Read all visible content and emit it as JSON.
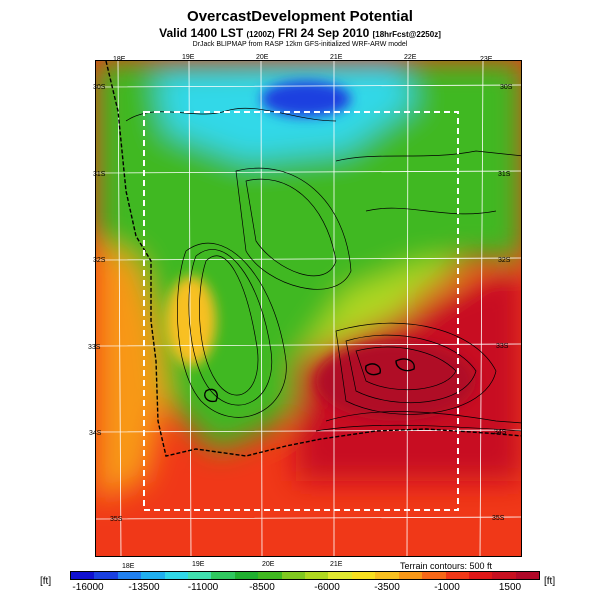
{
  "title": "OvercastDevelopment Potential",
  "subtitle_main": "Valid 1400 LST",
  "subtitle_z": "(1200Z)",
  "subtitle_date": "FRI 24 Sep 2010",
  "subtitle_fcst": "[18hrFcst@2250z]",
  "credit": "DrJack BLIPMAP from RASP 12km GFS-initialized WRF-ARW model",
  "lon_labels_top": [
    "18E",
    "19E",
    "20E",
    "21E",
    "22E",
    "23E"
  ],
  "lon_labels_bottom": [
    "18E",
    "19E",
    "20E",
    "21E"
  ],
  "lat_labels_left": [
    "30S",
    "31S",
    "32S",
    "33S",
    "34S",
    "35S"
  ],
  "lat_labels_right": [
    "30S",
    "31S",
    "32S",
    "33S",
    "34S",
    "35S"
  ],
  "terrain_note": "Terrain contours: 500 ft",
  "unit": "[ft]",
  "colorbar": {
    "labels": [
      "-16000",
      "-13500",
      "-11000",
      "-8500",
      "-6000",
      "-3500",
      "-1000",
      "1500"
    ],
    "colors": [
      "#1010d0",
      "#1a40e0",
      "#2080f0",
      "#20b0f0",
      "#30d8e8",
      "#40e0b0",
      "#30c860",
      "#20b030",
      "#40b820",
      "#80c820",
      "#b0d820",
      "#e0e830",
      "#f8e020",
      "#f8c020",
      "#f89818",
      "#f86818",
      "#f03818",
      "#e01818",
      "#c81020",
      "#b00828"
    ]
  }
}
